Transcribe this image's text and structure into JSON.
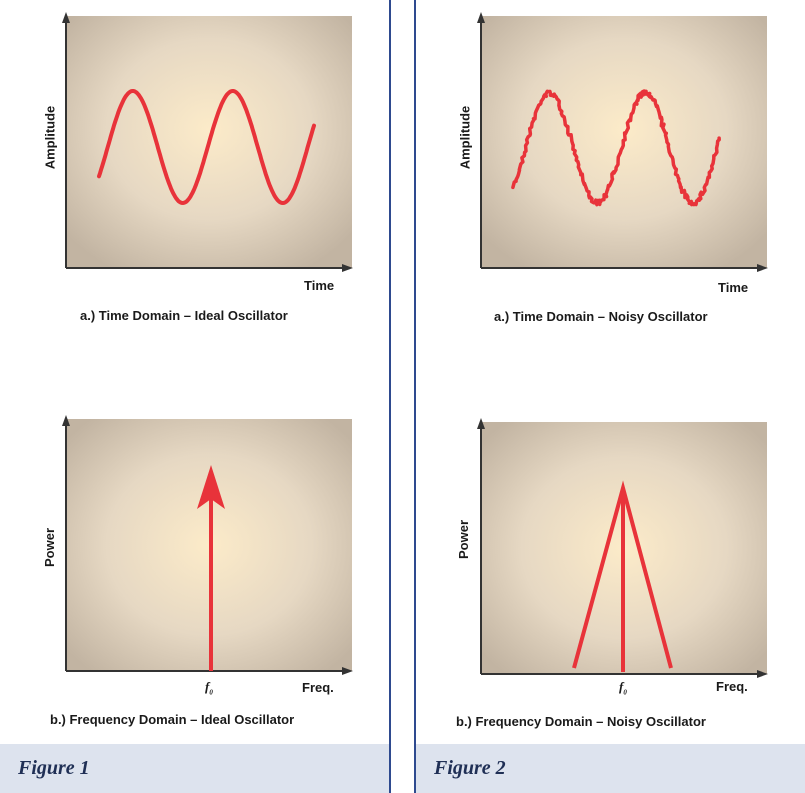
{
  "colors": {
    "curve": "#e8333a",
    "plot_bg_outer": "#c6b8a6",
    "plot_bg_inner": "#fcebc9",
    "axis": "#333333",
    "divider": "#2e4a8f",
    "figure_bar": "#dde3ee",
    "figure_text": "#1f2f55"
  },
  "figure1": {
    "label": "Figure 1",
    "top": {
      "ylabel": "Amplitude",
      "xlabel": "Time",
      "caption": "a.) Time Domain – Ideal Oscillator",
      "signal": "ideal-sine"
    },
    "bottom": {
      "ylabel": "Power",
      "xlabel": "Freq.",
      "tick": "f",
      "tick_sub": "0",
      "caption": "b.) Frequency Domain – Ideal Oscillator",
      "signal": "single-spectral-line"
    }
  },
  "figure2": {
    "label": "Figure 2",
    "top": {
      "ylabel": "Amplitude",
      "xlabel": "Time",
      "caption": "a.) Time Domain – Noisy Oscillator",
      "signal": "noisy-sine"
    },
    "bottom": {
      "ylabel": "Power",
      "xlabel": "Freq.",
      "tick": "f",
      "tick_sub": "0",
      "caption": "b.) Frequency Domain – Noisy Oscillator",
      "signal": "broadened-spectral-peak"
    }
  }
}
